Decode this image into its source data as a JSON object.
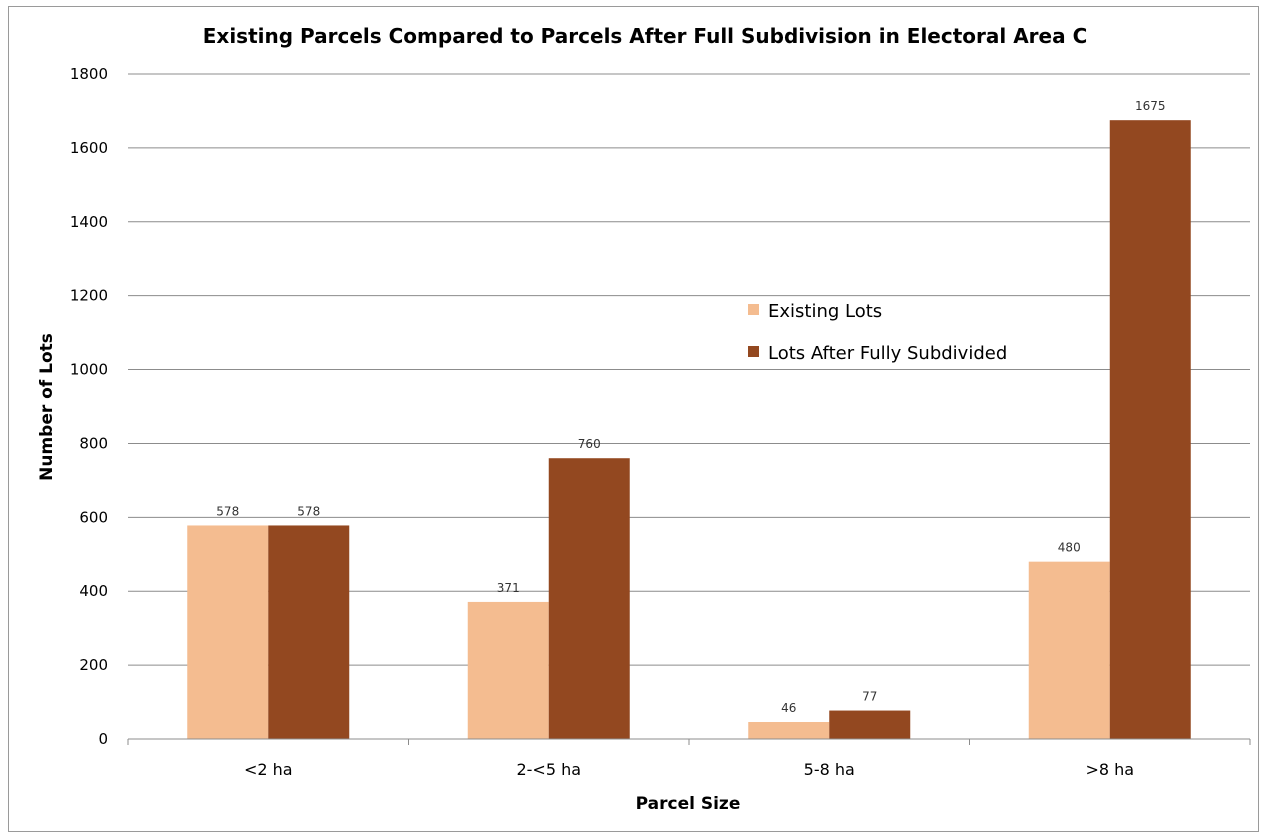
{
  "chart_data": {
    "type": "bar",
    "title": "Existing Parcels Compared to Parcels After Full Subdivision in Electoral Area C",
    "xlabel": "Parcel Size",
    "ylabel": "Number of Lots",
    "categories": [
      "<2 ha",
      "2-<5 ha",
      "5-8 ha",
      ">8 ha"
    ],
    "series": [
      {
        "name": "Existing Lots",
        "values": [
          578,
          371,
          46,
          480
        ],
        "color": "#f4bc90"
      },
      {
        "name": "Lots After Fully Subdivided",
        "values": [
          578,
          760,
          77,
          1675
        ],
        "color": "#934820"
      }
    ],
    "ylim": [
      0,
      1800
    ],
    "yticks": [
      0,
      200,
      400,
      600,
      800,
      1000,
      1200,
      1400,
      1600,
      1800
    ],
    "grid": true,
    "legend_position": "center-right"
  }
}
